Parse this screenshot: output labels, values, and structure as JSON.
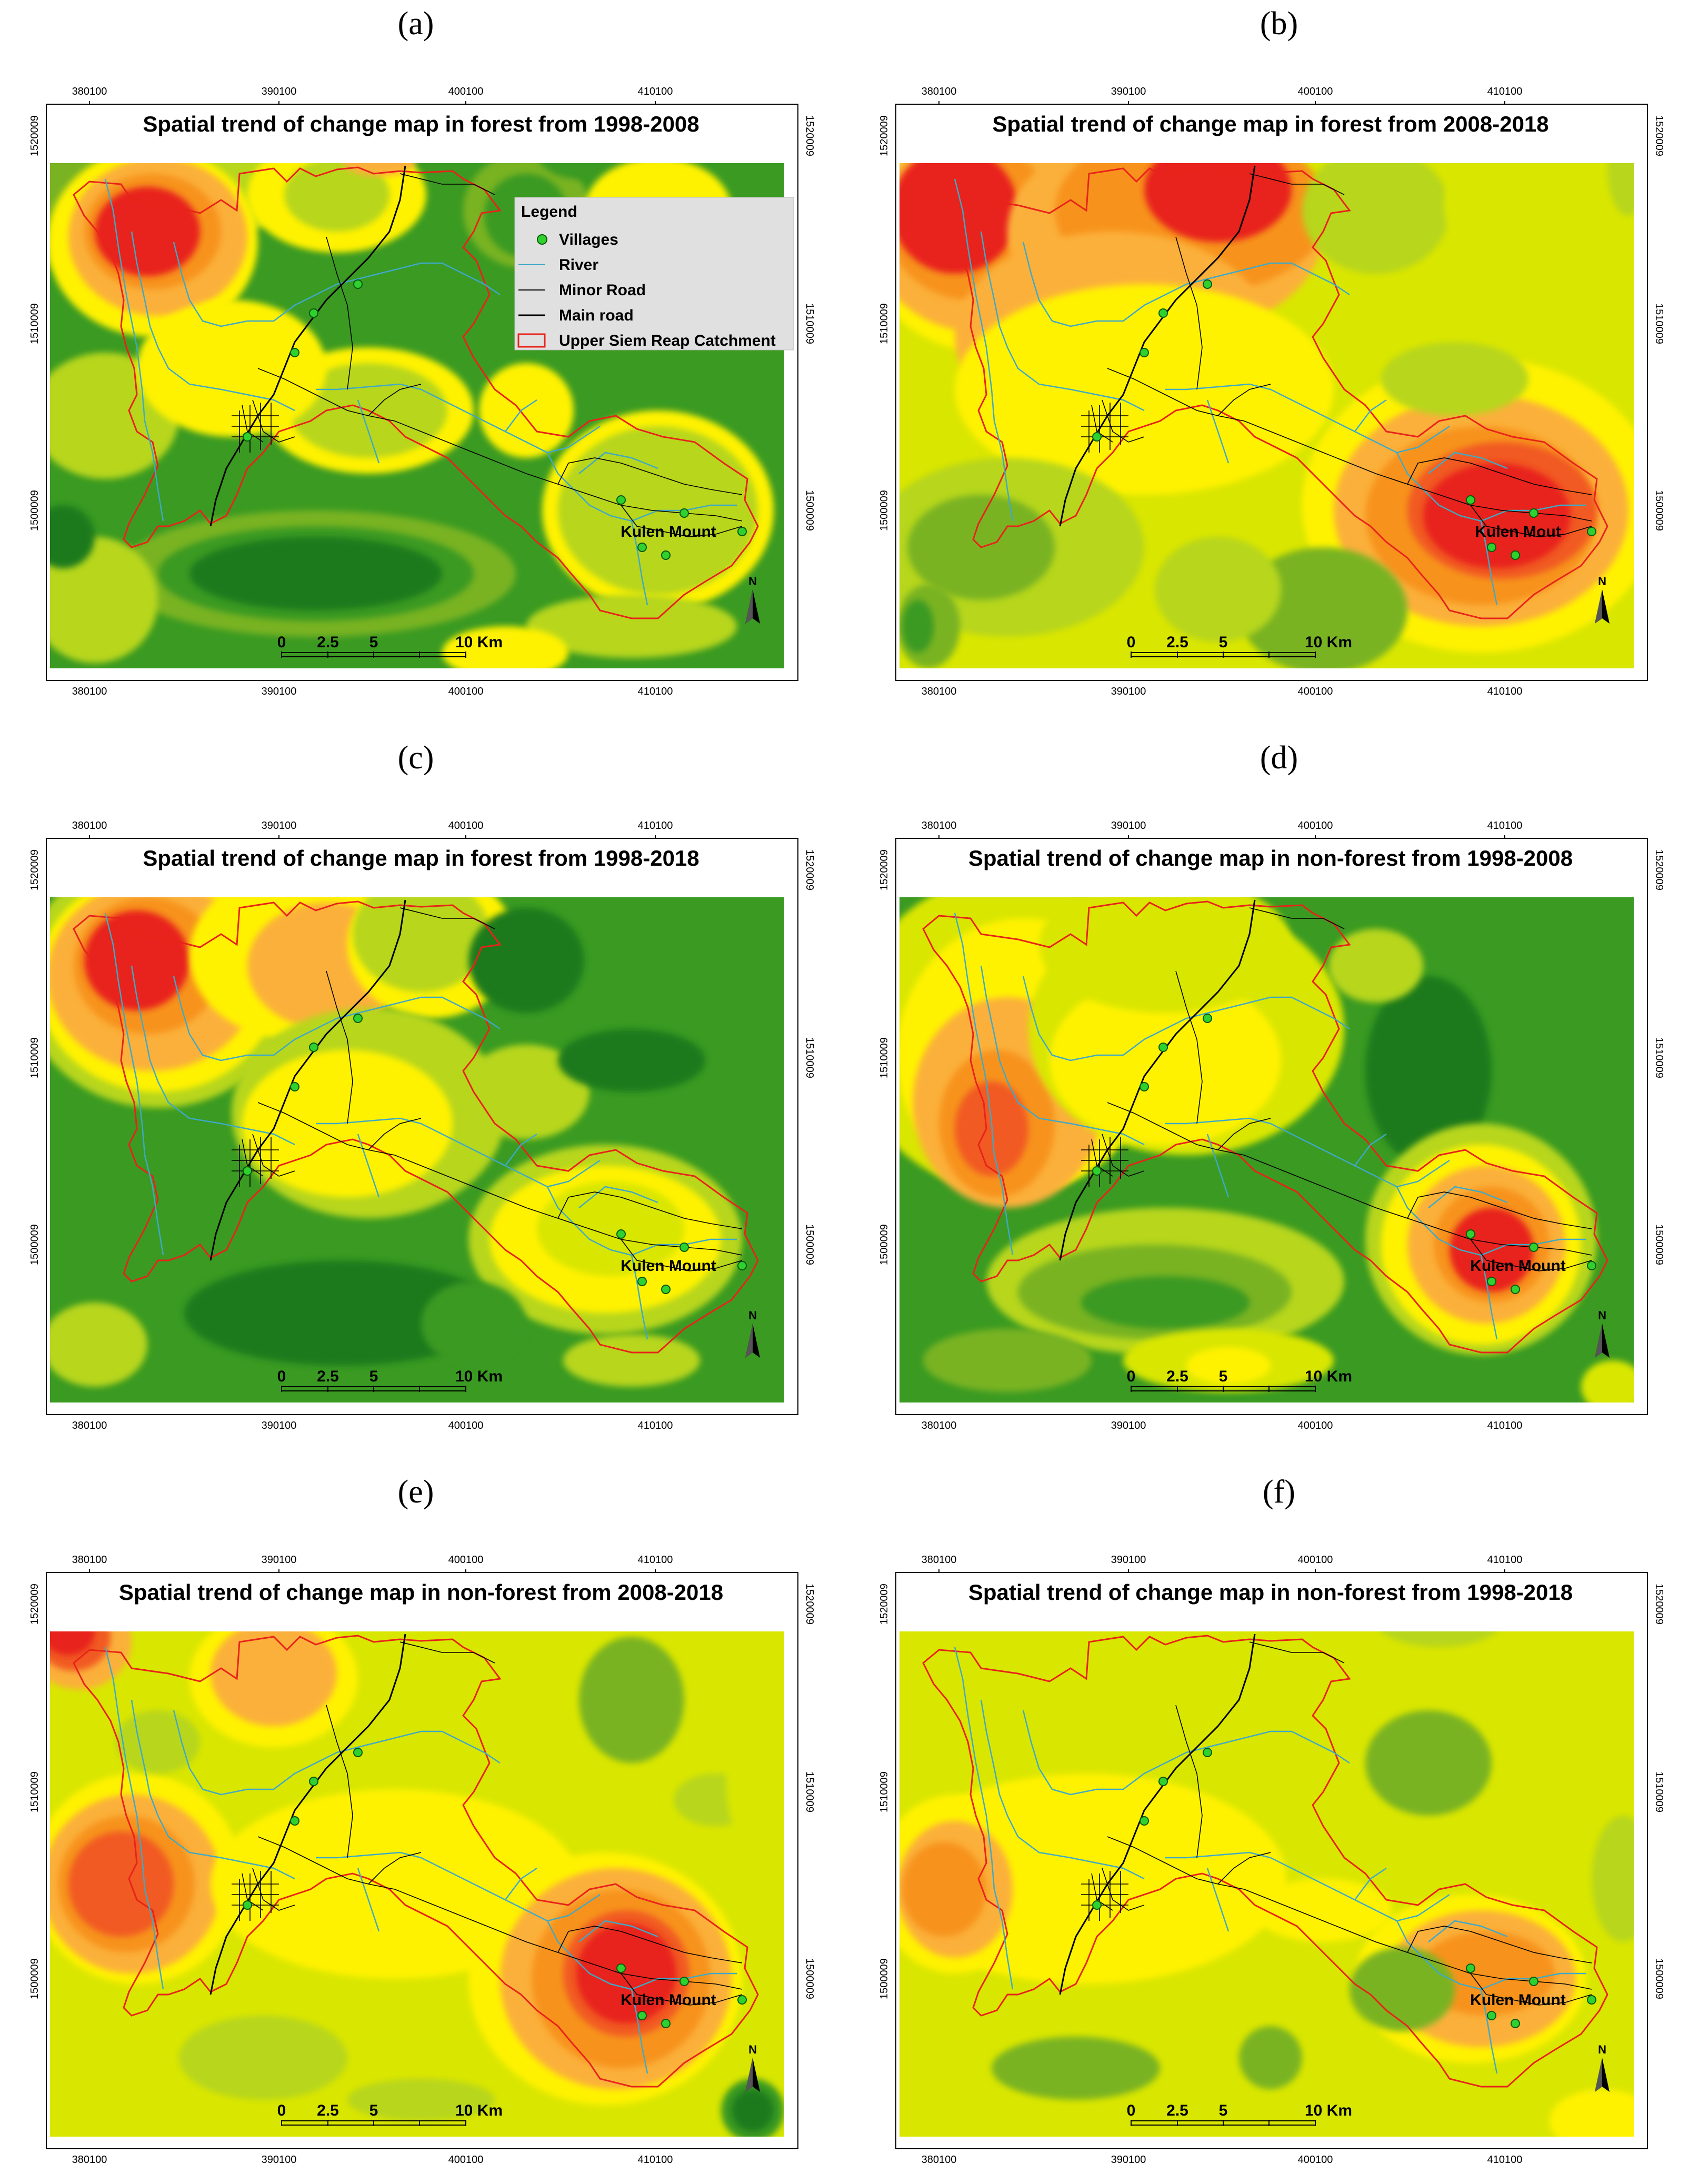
{
  "panels": [
    {
      "label": "(a)",
      "title": "Spatial trend of change map in forest from 1998-2008",
      "place": "Kulen Mount",
      "variant": "fa"
    },
    {
      "label": "(b)",
      "title": "Spatial trend of change map in forest from 2008-2018",
      "place": "Kulen Mout",
      "variant": "fb"
    },
    {
      "label": "(c)",
      "title": "Spatial trend of change map in forest from 1998-2018",
      "place": "Kulen Mount",
      "variant": "fc"
    },
    {
      "label": "(d)",
      "title": "Spatial trend of change map in non-forest from 1998-2008",
      "place": "Kulen Mount",
      "variant": "nd"
    },
    {
      "label": "(e)",
      "title": "Spatial trend of change map in non-forest from 2008-2018",
      "place": "Kulen Mount",
      "variant": "ne"
    },
    {
      "label": "(f)",
      "title": "Spatial trend of change map in non-forest from 1998-2018",
      "place": "Kulen Mount",
      "variant": "nf"
    }
  ],
  "x_ticks": [
    "380100",
    "390100",
    "400100",
    "410100"
  ],
  "y_ticks": [
    "1520009",
    "1510009",
    "1500009"
  ],
  "scale_labels": [
    "0",
    "2.5",
    "5",
    "10 Km"
  ],
  "north": "N",
  "legend": {
    "title": "Legend",
    "items": [
      {
        "label": "Villages",
        "symbol": "village"
      },
      {
        "label": "River",
        "symbol": "river"
      },
      {
        "label": "Minor Road",
        "symbol": "minor"
      },
      {
        "label": "Main road",
        "symbol": "main"
      },
      {
        "label": "Upper Siem Reap Catchment",
        "symbol": "catchment"
      }
    ]
  },
  "colors": {
    "dark_green": "#1a7a1a",
    "green": "#3a9a22",
    "mid_green": "#79b321",
    "light_green": "#b7d61c",
    "yellow_green": "#d9e600",
    "yellow": "#fff200",
    "orange": "#fbb03b",
    "dark_orange": "#f7931e",
    "red_orange": "#f15a24",
    "red": "#e8231a",
    "river": "#3fa9c6",
    "catchment": "#e8231a",
    "road": "#000000",
    "village": "#2fd12f"
  }
}
